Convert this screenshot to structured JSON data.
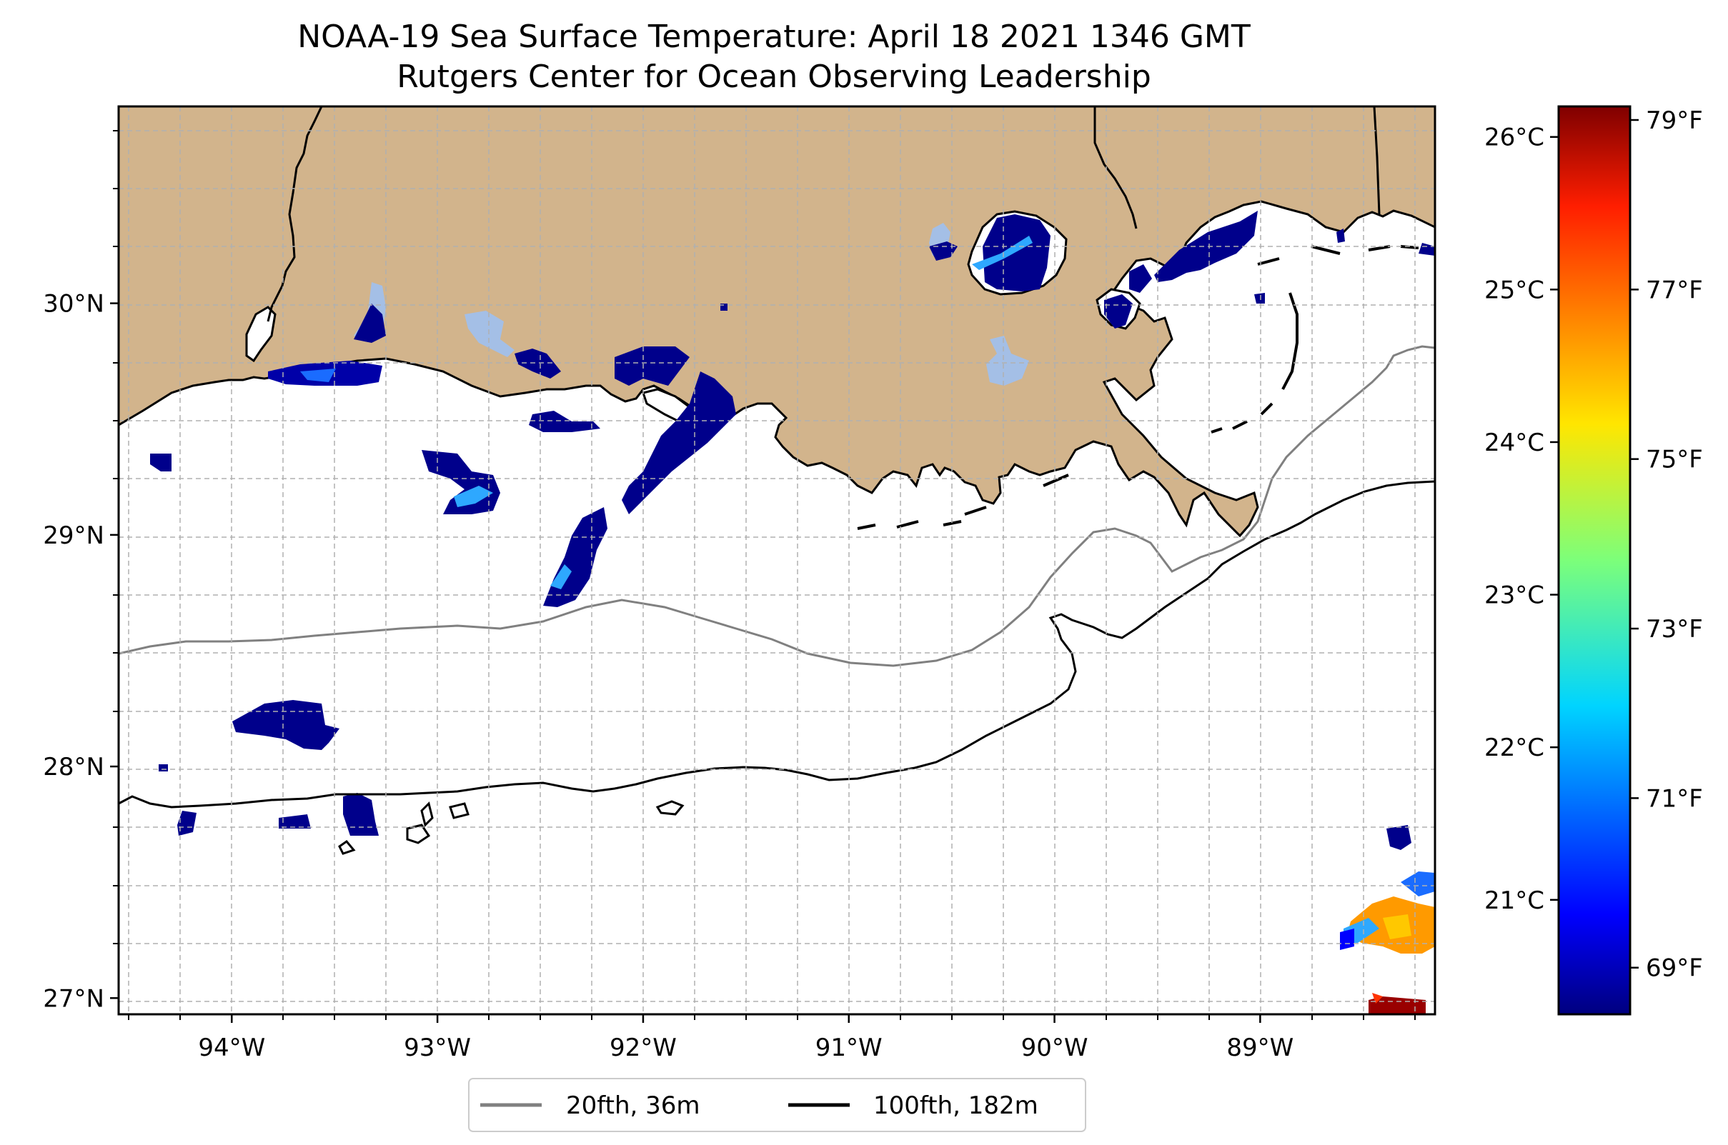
{
  "title_line1": "NOAA-19 Sea Surface Temperature: April 18 2021 1346 GMT",
  "title_line2": "Rutgers Center for Ocean Observing Leadership",
  "colors": {
    "land": "#d2b48c",
    "ocean": "#ffffff",
    "lake": "#a4bfe6",
    "isobath_20": "#808080",
    "isobath_100": "#000000"
  },
  "map": {
    "lon_range": [
      -94.55,
      -88.15
    ],
    "lat_range": [
      26.93,
      30.85
    ],
    "gridlines": true
  },
  "chart_data": {
    "type": "heatmap",
    "colormap": "jet",
    "x_ticks": [
      "94°W",
      "93°W",
      "92°W",
      "91°W",
      "90°W",
      "89°W"
    ],
    "x_tick_values": [
      -94,
      -93,
      -92,
      -91,
      -90,
      -89
    ],
    "y_ticks": [
      "30°N",
      "29°N",
      "28°N",
      "27°N"
    ],
    "y_tick_values": [
      30,
      29,
      28,
      27
    ],
    "colorbar": {
      "range_c": [
        20.25,
        26.2
      ],
      "celsius_ticks": [
        "26°C",
        "25°C",
        "24°C",
        "23°C",
        "22°C",
        "21°C"
      ],
      "celsius_values": [
        26,
        25,
        24,
        23,
        22,
        21
      ],
      "fahrenheit_ticks": [
        "79°F",
        "77°F",
        "75°F",
        "73°F",
        "71°F",
        "69°F"
      ],
      "fahrenheit_values": [
        79,
        77,
        75,
        73,
        71,
        69
      ]
    },
    "legend": [
      {
        "label": "20fth, 36m",
        "color": "#808080"
      },
      {
        "label": "100fth, 182m",
        "color": "#000000"
      }
    ],
    "legend_placement": "bottom-center"
  }
}
